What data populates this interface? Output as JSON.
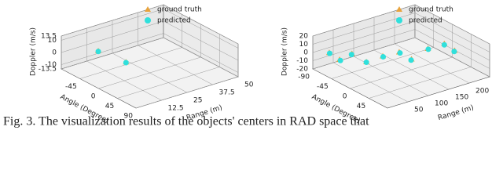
{
  "chart_data": [
    {
      "type": "scatter3d",
      "xlabel": "Range (m)",
      "ylabel": "Angle (Degree)",
      "zlabel": "Doppler (m/s)",
      "xlim": [
        0,
        50
      ],
      "xticks": [
        12.5,
        25,
        37.5,
        50
      ],
      "ylim": [
        -90,
        90
      ],
      "yticks": [
        -45,
        0,
        45,
        90
      ],
      "zlim": [
        -13.5,
        13.5
      ],
      "zticks": [
        -13.5,
        -10,
        0,
        10,
        13.5
      ],
      "legend": "upper right",
      "grid": true,
      "series": [
        {
          "name": "ground truth",
          "color": "#e8a33c",
          "marker": "triangle",
          "x": [
            12,
            14
          ],
          "y": [
            -60,
            -3
          ],
          "z": [
            0.5,
            0.5
          ]
        },
        {
          "name": "predicted",
          "color": "#2fe0dc",
          "marker": "circle",
          "x": [
            12,
            14
          ],
          "y": [
            -60,
            -3
          ],
          "z": [
            0,
            0
          ]
        }
      ]
    },
    {
      "type": "scatter3d",
      "xlabel": "Range (m)",
      "ylabel": "Angle (Degree)",
      "zlabel": "Doppler (m/s)",
      "xlim": [
        0,
        250
      ],
      "xticks": [
        50,
        100,
        150,
        200
      ],
      "ylim": [
        -90,
        90
      ],
      "yticks": [
        -90,
        -45,
        0,
        45
      ],
      "zlim": [
        -20,
        20
      ],
      "zticks": [
        -20,
        -10,
        0,
        10,
        20
      ],
      "legend": "upper right",
      "grid": true,
      "series": [
        {
          "name": "ground truth",
          "color": "#e8a33c",
          "marker": "triangle",
          "x": [
            20,
            30,
            45,
            60,
            90,
            120,
            140,
            170,
            200,
            215
          ],
          "y": [
            -70,
            -55,
            -40,
            -20,
            -10,
            0,
            10,
            20,
            30,
            40
          ],
          "z": [
            2,
            -4,
            5,
            -2,
            3,
            6,
            -3,
            8,
            12,
            4
          ]
        },
        {
          "name": "predicted",
          "color": "#2fe0dc",
          "marker": "circle",
          "x": [
            21,
            31,
            44,
            61,
            91,
            121,
            139,
            171,
            199,
            214
          ],
          "y": [
            -70,
            -54,
            -40,
            -21,
            -10,
            1,
            10,
            20,
            31,
            40
          ],
          "z": [
            1,
            -5,
            4,
            -3,
            2,
            5,
            -4,
            7,
            11,
            3
          ]
        }
      ]
    }
  ],
  "caption": "Fig. 3.   The visualization results of the objects' centers in RAD space that"
}
